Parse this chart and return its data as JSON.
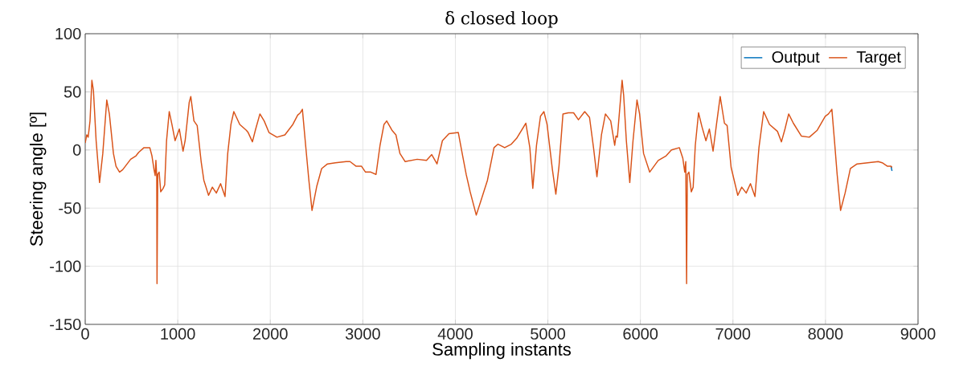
{
  "chart_data": {
    "type": "line",
    "title": "δ closed loop",
    "xlabel": "Sampling instants",
    "ylabel": "Steering angle [º]",
    "xlim": [
      0,
      9000
    ],
    "ylim": [
      -150,
      100
    ],
    "xticks": [
      0,
      1000,
      2000,
      3000,
      4000,
      5000,
      6000,
      7000,
      8000,
      9000
    ],
    "yticks": [
      -150,
      -100,
      -50,
      0,
      50,
      100
    ],
    "grid": true,
    "legend": "top right",
    "line_style": "solid",
    "marker": "none",
    "x": [
      0,
      17,
      32,
      52,
      72,
      89,
      118,
      155,
      190,
      233,
      261,
      305,
      333,
      371,
      405,
      491,
      549,
      578,
      635,
      698,
      721,
      744,
      756,
      764,
      773,
      776,
      784,
      799,
      816,
      842,
      859,
      879,
      908,
      937,
      971,
      1017,
      1057,
      1080,
      1124,
      1141,
      1175,
      1210,
      1253,
      1282,
      1333,
      1374,
      1417,
      1463,
      1511,
      1540,
      1575,
      1606,
      1670,
      1741,
      1761,
      1807,
      1842,
      1888,
      1934,
      1986,
      2072,
      2158,
      2244,
      2296,
      2325,
      2347,
      2382,
      2417,
      2451,
      2503,
      2555,
      2618,
      2704,
      2819,
      2862,
      2928,
      2986,
      3029,
      3086,
      3143,
      3186,
      3229,
      3258,
      3315,
      3358,
      3401,
      3458,
      3587,
      3688,
      3745,
      3802,
      3860,
      3931,
      4032,
      4074,
      4117,
      4160,
      4226,
      4275,
      4347,
      4418,
      4461,
      4533,
      4605,
      4662,
      4762,
      4805,
      4837,
      4877,
      4920,
      4957,
      4991,
      5049,
      5086,
      5120,
      5163,
      5221,
      5278,
      5330,
      5398,
      5450,
      5493,
      5530,
      5579,
      5622,
      5679,
      5722,
      5736,
      5751,
      5802,
      5819,
      5848,
      5885,
      5920,
      5963,
      5991,
      6034,
      6100,
      6192,
      6278,
      6335,
      6421,
      6458,
      6479,
      6490,
      6499,
      6507,
      6524,
      6550,
      6570,
      6593,
      6628,
      6665,
      6708,
      6745,
      6785,
      6822,
      6862,
      6908,
      6937,
      6980,
      7052,
      7095,
      7143,
      7189,
      7238,
      7281,
      7332,
      7395,
      7481,
      7524,
      7562,
      7602,
      7653,
      7739,
      7825,
      7911,
      7997,
      8032,
      8069,
      8097,
      8126,
      8163,
      8212,
      8269,
      8341,
      8456,
      8570,
      8613,
      8670,
      8708,
      8719
    ],
    "series": [
      {
        "name": "Output",
        "color": "#0072bd",
        "x": [
          8708,
          8719
        ],
        "values": [
          -14,
          -18
        ]
      },
      {
        "name": "Target",
        "color": "#d95319",
        "values": [
          6,
          13,
          11,
          25,
          60,
          51,
          8,
          -28,
          -3,
          43,
          31,
          -3,
          -14,
          -19,
          -17,
          -8,
          -5,
          -2,
          2,
          2,
          -5,
          -17,
          -22,
          -9,
          -23,
          -115,
          -21,
          -19,
          -36,
          -33,
          -30,
          8,
          33,
          22,
          8,
          18,
          -1,
          8,
          41,
          46,
          25,
          21,
          -10,
          -26,
          -39,
          -32,
          -37,
          -29,
          -40,
          -3,
          22,
          33,
          22,
          17,
          15,
          7,
          18,
          31,
          25,
          15,
          11,
          13,
          22,
          30,
          32,
          35,
          4,
          -26,
          -52,
          -31,
          -16,
          -12,
          -11,
          -10,
          -10,
          -14,
          -14,
          -19,
          -19,
          -21,
          4,
          22,
          25,
          17,
          13,
          -3,
          -10,
          -8,
          -9,
          -4,
          -12,
          8,
          14,
          15,
          -3,
          -21,
          -36,
          -56,
          -44,
          -26,
          2,
          5,
          2,
          5,
          10,
          23,
          2,
          -33,
          4,
          29,
          33,
          22,
          -17,
          -38,
          -14,
          31,
          32,
          32,
          26,
          33,
          28,
          2,
          -23,
          13,
          31,
          25,
          4,
          12,
          11,
          60,
          47,
          8,
          -28,
          8,
          43,
          31,
          -3,
          -19,
          -9,
          -5,
          0,
          2,
          -7,
          -19,
          -10,
          -115,
          -21,
          -19,
          -36,
          -32,
          4,
          32,
          20,
          8,
          18,
          -1,
          22,
          46,
          23,
          21,
          -15,
          -39,
          -32,
          -37,
          -29,
          -40,
          2,
          33,
          22,
          16,
          7,
          18,
          31,
          23,
          12,
          11,
          17,
          29,
          31,
          35,
          8,
          -21,
          -52,
          -37,
          -16,
          -12,
          -11,
          -10,
          -11,
          -14,
          -14,
          -15
        ]
      }
    ]
  }
}
